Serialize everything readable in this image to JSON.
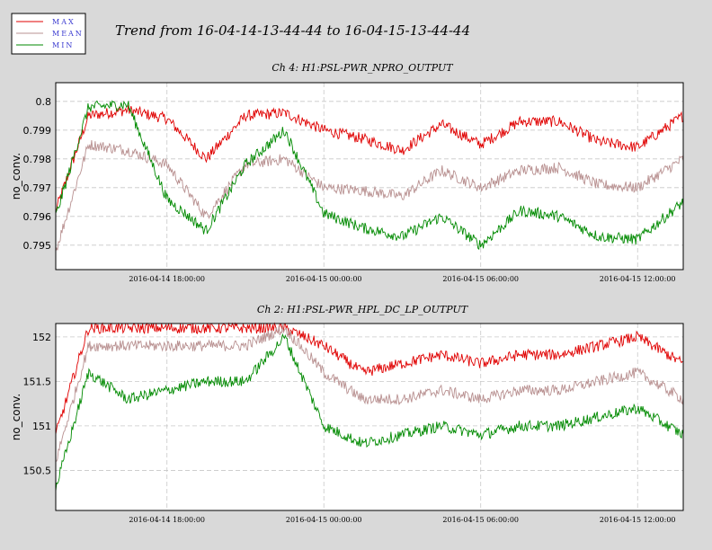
{
  "figure": {
    "title": "Trend from 16-04-14-13-44-44 to 16-04-15-13-44-44"
  },
  "legend": {
    "placement": "top-left",
    "entries": [
      {
        "label": "MAX",
        "color": "#e00000"
      },
      {
        "label": "MEAN",
        "color": "#b89090"
      },
      {
        "label": "MIN",
        "color": "#008a00"
      }
    ]
  },
  "chart_data": [
    {
      "type": "line",
      "title": "Ch 4: H1:PSL-PWR_NPRO_OUTPUT",
      "ylabel": "no_conv.",
      "xlabel": "",
      "grid": true,
      "x_range": [
        "2016-04-14 13:44:44",
        "2016-04-15 13:44:44"
      ],
      "ylim": [
        0.79415,
        0.80065
      ],
      "yticks": [
        0.795,
        0.796,
        0.797,
        0.798,
        0.799,
        0.8
      ],
      "ytick_labels": [
        "0.795",
        "0.796",
        "0.797",
        "0.798",
        "0.799",
        "0.8"
      ],
      "xticks": [
        "2016-04-14 18:00:00",
        "2016-04-15 00:00:00",
        "2016-04-15 06:00:00",
        "2016-04-15 12:00:00"
      ],
      "x_times": [
        "2016-04-14 13:44:44",
        "2016-04-14 15:00:00",
        "2016-04-14 16:30:00",
        "2016-04-14 18:00:00",
        "2016-04-14 19:30:00",
        "2016-04-14 21:00:00",
        "2016-04-14 22:30:00",
        "2016-04-15 00:00:00",
        "2016-04-15 01:30:00",
        "2016-04-15 03:00:00",
        "2016-04-15 04:30:00",
        "2016-04-15 06:00:00",
        "2016-04-15 07:30:00",
        "2016-04-15 09:00:00",
        "2016-04-15 10:30:00",
        "2016-04-15 12:00:00",
        "2016-04-15 13:44:44"
      ],
      "series": [
        {
          "name": "MAX",
          "color": "#e00000",
          "values": [
            0.7962,
            0.7995,
            0.7997,
            0.7994,
            0.798,
            0.7995,
            0.7996,
            0.799,
            0.7987,
            0.7983,
            0.7992,
            0.7985,
            0.7993,
            0.7993,
            0.7986,
            0.7984,
            0.7995
          ]
        },
        {
          "name": "MEAN",
          "color": "#b89090",
          "values": [
            0.7948,
            0.7985,
            0.7983,
            0.7978,
            0.796,
            0.7978,
            0.798,
            0.797,
            0.7969,
            0.7967,
            0.7976,
            0.797,
            0.7976,
            0.7977,
            0.7971,
            0.797,
            0.798
          ]
        },
        {
          "name": "MIN",
          "color": "#008a00",
          "values": [
            0.796,
            0.7998,
            0.7999,
            0.7966,
            0.7955,
            0.7978,
            0.799,
            0.7961,
            0.7956,
            0.7953,
            0.796,
            0.795,
            0.7962,
            0.796,
            0.7953,
            0.7952,
            0.7965
          ]
        }
      ]
    },
    {
      "type": "line",
      "title": "Ch 2: H1:PSL-PWR_HPL_DC_LP_OUTPUT",
      "ylabel": "no_conv.",
      "xlabel": "",
      "grid": true,
      "x_range": [
        "2016-04-14 13:44:44",
        "2016-04-15 13:44:44"
      ],
      "ylim": [
        150.05,
        152.15
      ],
      "yticks": [
        150.5,
        151,
        151.5,
        152
      ],
      "ytick_labels": [
        "150.5",
        "151",
        "151.5",
        "152"
      ],
      "xticks": [
        "2016-04-14 18:00:00",
        "2016-04-15 00:00:00",
        "2016-04-15 06:00:00",
        "2016-04-15 12:00:00"
      ],
      "x_times": [
        "2016-04-14 13:44:44",
        "2016-04-14 15:00:00",
        "2016-04-14 16:30:00",
        "2016-04-14 18:00:00",
        "2016-04-14 19:30:00",
        "2016-04-14 21:00:00",
        "2016-04-14 22:30:00",
        "2016-04-15 00:00:00",
        "2016-04-15 01:30:00",
        "2016-04-15 03:00:00",
        "2016-04-15 04:30:00",
        "2016-04-15 06:00:00",
        "2016-04-15 07:30:00",
        "2016-04-15 09:00:00",
        "2016-04-15 10:30:00",
        "2016-04-15 12:00:00",
        "2016-04-15 13:44:44"
      ],
      "series": [
        {
          "name": "MAX",
          "color": "#e00000",
          "values": [
            150.9,
            152.1,
            152.1,
            152.1,
            152.1,
            152.1,
            152.1,
            151.9,
            151.6,
            151.7,
            151.8,
            151.7,
            151.8,
            151.8,
            151.9,
            152.0,
            151.7
          ]
        },
        {
          "name": "MEAN",
          "color": "#b89090",
          "values": [
            150.6,
            151.9,
            151.9,
            151.9,
            151.9,
            151.9,
            152.1,
            151.6,
            151.3,
            151.3,
            151.4,
            151.3,
            151.4,
            151.4,
            151.5,
            151.6,
            151.3
          ]
        },
        {
          "name": "MIN",
          "color": "#008a00",
          "values": [
            150.3,
            151.6,
            151.3,
            151.4,
            151.5,
            151.5,
            152.0,
            151.0,
            150.8,
            150.9,
            151.0,
            150.9,
            151.0,
            151.0,
            151.1,
            151.2,
            150.9
          ]
        }
      ]
    }
  ]
}
